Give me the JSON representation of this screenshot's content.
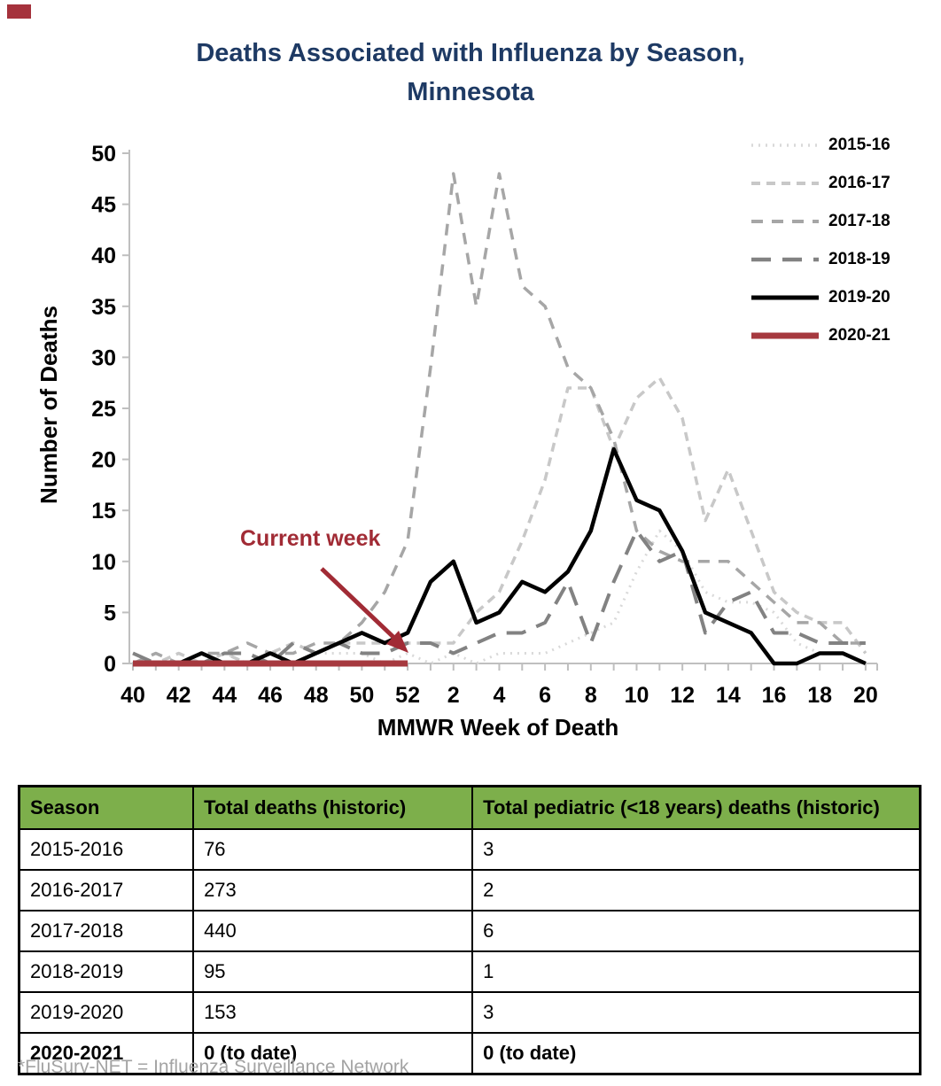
{
  "page": {
    "corner_color": "#a5323c"
  },
  "title": {
    "line1": "Deaths Associated with Influenza by Season,",
    "line2": "Minnesota",
    "color": "#1e3a64"
  },
  "chart_data": {
    "type": "line",
    "ylabel": "Number of Deaths",
    "xlabel": "MMWR Week of Death",
    "ylim": [
      0,
      50
    ],
    "ytick_step": 5,
    "grid": false,
    "legend_position": "top-right",
    "axis_color": "#bfbfbf",
    "categories": [
      "40",
      "41",
      "42",
      "43",
      "44",
      "45",
      "46",
      "47",
      "48",
      "49",
      "50",
      "51",
      "52",
      "1",
      "2",
      "3",
      "4",
      "5",
      "6",
      "7",
      "8",
      "9",
      "10",
      "11",
      "12",
      "13",
      "14",
      "15",
      "16",
      "17",
      "18",
      "19",
      "20"
    ],
    "xtick_label_every": 2,
    "annotation": {
      "text": "Current week",
      "color": "#a12b35",
      "points_to": "week 52, value 0"
    },
    "series": [
      {
        "name": "2015-16",
        "color": "#d9d9d9",
        "dash": "2 6",
        "width": 3,
        "values": [
          0,
          0,
          0,
          0,
          1,
          0,
          0,
          0,
          1,
          1,
          1,
          0,
          1,
          0,
          1,
          0,
          1,
          1,
          1,
          2,
          3,
          4,
          9,
          13,
          11,
          7,
          6,
          6,
          5,
          2,
          1,
          1,
          0
        ]
      },
      {
        "name": "2016-17",
        "color": "#c8c8c8",
        "dash": "10 7",
        "width": 3.5,
        "values": [
          0,
          0,
          1,
          0,
          1,
          0,
          1,
          2,
          1,
          2,
          2,
          2,
          2,
          2,
          2,
          5,
          7,
          12,
          18,
          27,
          27,
          21,
          26,
          28,
          24,
          14,
          19,
          13,
          7,
          5,
          4,
          4,
          1
        ]
      },
      {
        "name": "2017-18",
        "color": "#a6a6a6",
        "dash": "13 10",
        "width": 3.5,
        "values": [
          0,
          1,
          0,
          1,
          1,
          2,
          1,
          1,
          2,
          2,
          4,
          7,
          12,
          29,
          48,
          35,
          48,
          37,
          35,
          29,
          27,
          22,
          13,
          11,
          10,
          10,
          10,
          8,
          6,
          4,
          4,
          2,
          2
        ]
      },
      {
        "name": "2018-19",
        "color": "#828282",
        "dash": "22 13",
        "width": 4,
        "values": [
          1,
          0,
          0,
          0,
          1,
          1,
          0,
          2,
          1,
          2,
          1,
          1,
          2,
          2,
          1,
          2,
          3,
          3,
          4,
          8,
          2,
          8,
          13,
          10,
          11,
          3,
          6,
          7,
          3,
          3,
          2,
          2,
          2
        ]
      },
      {
        "name": "2019-20",
        "color": "#000000",
        "dash": null,
        "width": 4.5,
        "values": [
          0,
          0,
          0,
          1,
          0,
          0,
          1,
          0,
          1,
          2,
          3,
          2,
          3,
          8,
          10,
          4,
          5,
          8,
          7,
          9,
          13,
          21,
          16,
          15,
          11,
          5,
          4,
          3,
          0,
          0,
          1,
          1,
          0
        ]
      },
      {
        "name": "2020-21",
        "color": "#a6393f",
        "dash": null,
        "width": 7,
        "values": [
          0,
          0,
          0,
          0,
          0,
          0,
          0,
          0,
          0,
          0,
          0,
          0,
          0,
          null,
          null,
          null,
          null,
          null,
          null,
          null,
          null,
          null,
          null,
          null,
          null,
          null,
          null,
          null,
          null,
          null,
          null,
          null,
          null
        ]
      }
    ]
  },
  "table": {
    "header_bg": "#7daf4b",
    "columns": [
      "Season",
      "Total deaths (historic)",
      "Total pediatric (<18 years) deaths (historic)"
    ],
    "rows": [
      {
        "season": "2015-2016",
        "total": "76",
        "pediatric": "3"
      },
      {
        "season": "2016-2017",
        "total": "273",
        "pediatric": "2"
      },
      {
        "season": "2017-2018",
        "total": "440",
        "pediatric": "6"
      },
      {
        "season": "2018-2019",
        "total": "95",
        "pediatric": "1"
      },
      {
        "season": "2019-2020",
        "total": "153",
        "pediatric": "3"
      },
      {
        "season": "2020-2021",
        "total": "0 (to date)",
        "pediatric": "0 (to date)",
        "bold": true
      }
    ]
  },
  "footer": {
    "note": "*FluSurv-NET = Influenza Surveillance Network"
  }
}
